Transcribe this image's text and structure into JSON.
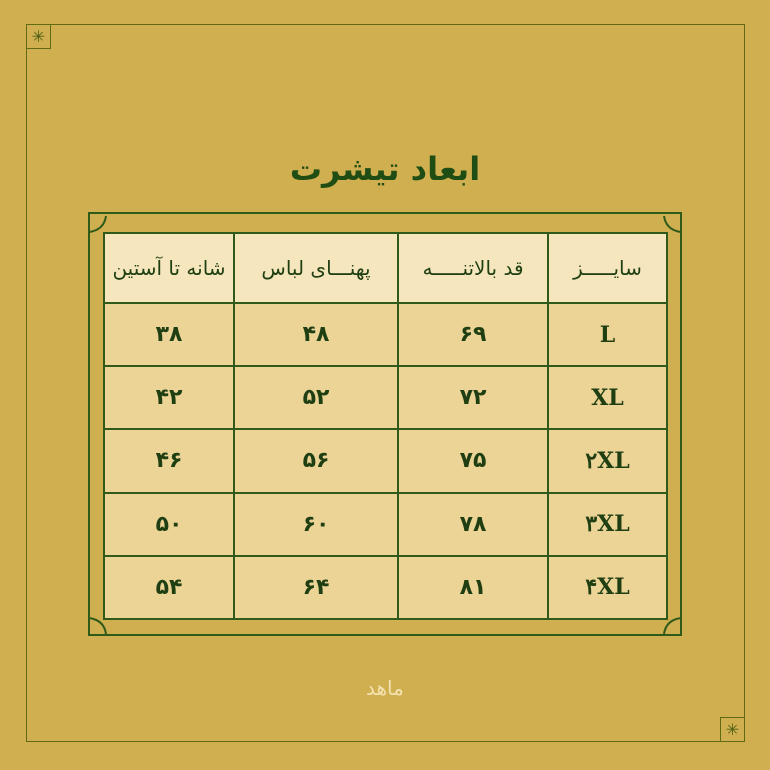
{
  "title": "ابعاد تیشرت",
  "table": {
    "headers": [
      "سایـــــز",
      "قد بالاتنـــــه",
      "پهنـــای لباس",
      "شانه تا آستین"
    ],
    "rows": [
      [
        "L",
        "۶۹",
        "۴۸",
        "۳۸"
      ],
      [
        "XL",
        "۷۲",
        "۵۲",
        "۴۲"
      ],
      [
        "۲XL",
        "۷۵",
        "۵۶",
        "۴۶"
      ],
      [
        "۳XL",
        "۷۸",
        "۶۰",
        "۵۰"
      ],
      [
        "۴XL",
        "۸۱",
        "۶۴",
        "۵۴"
      ]
    ]
  },
  "logo": "ماهد",
  "colors": {
    "background": "#cfaf4f",
    "accent": "#2f5a1a",
    "cell": "#ecd396"
  }
}
